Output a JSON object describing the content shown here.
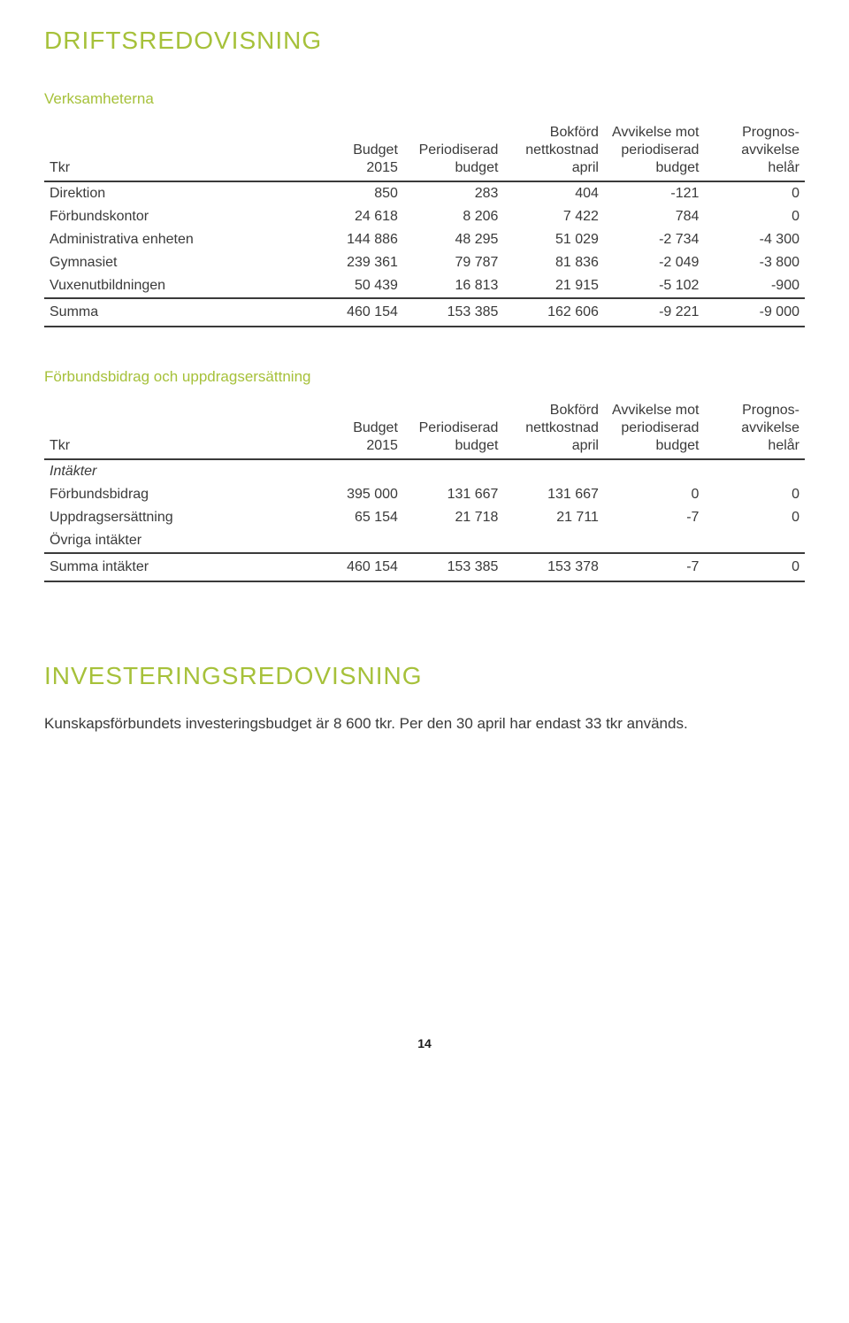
{
  "colors": {
    "accent": "#a6c13a",
    "text": "#3a3a3a",
    "border": "#a6c13a"
  },
  "page": {
    "title": "DRIFTSREDOVISNING",
    "number": "14"
  },
  "table1": {
    "title": "Verksamheterna",
    "columns": [
      "Tkr",
      "Budget\n2015",
      "Periodiserad\nbudget",
      "Bokförd\nnettkostnad april",
      "Avvikelse mot\nperiodiserad\nbudget",
      "Prognos-\navvikelse\nhelår"
    ],
    "rows": [
      {
        "label": "Direktion",
        "v": [
          "850",
          "283",
          "404",
          "-121",
          "0"
        ]
      },
      {
        "label": "Förbundskontor",
        "v": [
          "24 618",
          "8 206",
          "7 422",
          "784",
          "0"
        ]
      },
      {
        "label": "Administrativa enheten",
        "v": [
          "144 886",
          "48 295",
          "51 029",
          "-2 734",
          "-4 300"
        ]
      },
      {
        "label": "Gymnasiet",
        "v": [
          "239 361",
          "79 787",
          "81 836",
          "-2 049",
          "-3 800"
        ]
      },
      {
        "label": "Vuxenutbildningen",
        "v": [
          "50 439",
          "16 813",
          "21 915",
          "-5 102",
          "-900"
        ]
      }
    ],
    "sum": {
      "label": "Summa",
      "v": [
        "460 154",
        "153 385",
        "162 606",
        "-9 221",
        "-9 000"
      ]
    }
  },
  "table2": {
    "title": "Förbundsbidrag och uppdragsersättning",
    "columns": [
      "Tkr",
      "Budget\n2015",
      "Periodiserad\nbudget",
      "Bokförd\nnettkostnad april",
      "Avvikelse mot\nperiodiserad\nbudget",
      "Prognos-\navvikelse\nhelår"
    ],
    "section_label": "Intäkter",
    "rows": [
      {
        "label": "Förbundsbidrag",
        "v": [
          "395 000",
          "131 667",
          "131 667",
          "0",
          "0"
        ]
      },
      {
        "label": "Uppdragsersättning",
        "v": [
          "65 154",
          "21 718",
          "21 711",
          "-7",
          "0"
        ]
      },
      {
        "label": "Övriga intäkter",
        "v": [
          "",
          "",
          "",
          "",
          ""
        ]
      }
    ],
    "sum": {
      "label": "Summa intäkter",
      "v": [
        "460 154",
        "153 385",
        "153 378",
        "-7",
        "0"
      ]
    }
  },
  "section2": {
    "title": "INVESTERINGSREDOVISNING",
    "body": "Kunskapsförbundets investeringsbudget är 8 600 tkr. Per den 30 april har endast 33 tkr används."
  }
}
